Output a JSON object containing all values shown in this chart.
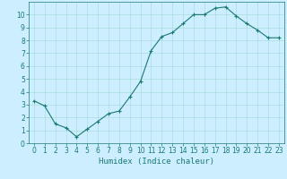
{
  "x": [
    0,
    1,
    2,
    3,
    4,
    5,
    6,
    7,
    8,
    9,
    10,
    11,
    12,
    13,
    14,
    15,
    16,
    17,
    18,
    19,
    20,
    21,
    22,
    23
  ],
  "y": [
    3.3,
    2.9,
    1.5,
    1.2,
    0.5,
    1.1,
    1.7,
    2.3,
    2.5,
    3.6,
    4.8,
    7.2,
    8.3,
    8.6,
    9.3,
    10.0,
    10.0,
    10.5,
    10.6,
    9.9,
    9.3,
    8.8,
    8.2,
    8.2
  ],
  "line_color": "#1a7a6e",
  "marker": "+",
  "markersize": 3,
  "linewidth": 0.8,
  "bg_color": "#cceeff",
  "grid_color": "#aadddd",
  "xlabel": "Humidex (Indice chaleur)",
  "xlim": [
    -0.5,
    23.5
  ],
  "ylim": [
    0,
    11
  ],
  "yticks": [
    0,
    1,
    2,
    3,
    4,
    5,
    6,
    7,
    8,
    9,
    10
  ],
  "xticks": [
    0,
    1,
    2,
    3,
    4,
    5,
    6,
    7,
    8,
    9,
    10,
    11,
    12,
    13,
    14,
    15,
    16,
    17,
    18,
    19,
    20,
    21,
    22,
    23
  ],
  "tick_fontsize": 5.5,
  "xlabel_fontsize": 6.5
}
